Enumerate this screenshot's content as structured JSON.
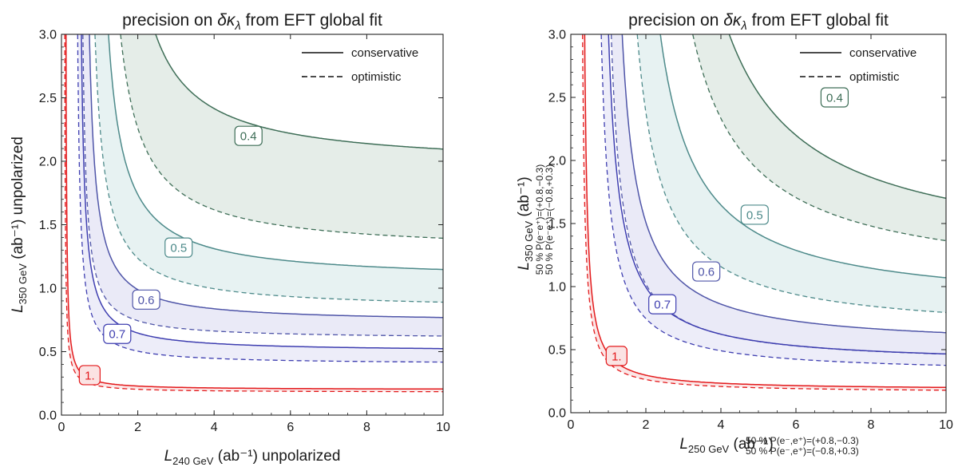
{
  "chart_data": [
    {
      "type": "contour",
      "title": "precision on δκλ from EFT global fit",
      "xlabel": {
        "sym": "L",
        "sub": "240 GeV",
        "unit": " (ab⁻¹) unpolarized"
      },
      "ylabel": {
        "sym": "L",
        "sub": "350 GeV",
        "unit": " (ab⁻¹) unpolarized"
      },
      "xlim": [
        0,
        10
      ],
      "ylim": [
        0,
        3
      ],
      "xticks": [
        "0",
        "2",
        "4",
        "6",
        "8",
        "10"
      ],
      "yticks": [
        "0.0",
        "0.5",
        "1.0",
        "1.5",
        "2.0",
        "2.5",
        "3.0"
      ],
      "legend": {
        "position": "top-right",
        "entries": [
          "conservative",
          "optimistic"
        ]
      },
      "series": [
        {
          "label": "0.4",
          "color": "#3e6e57",
          "fill": "#e2ebe6",
          "label_at": [
            4.9,
            2.2
          ],
          "conservative": {
            "x_asym": 1.25,
            "y_asym": 1.95,
            "k": 1.28
          },
          "optimistic": {
            "x_asym": 0.95,
            "y_asym": 1.28,
            "k": 1.03
          }
        },
        {
          "label": "0.5",
          "color": "#4d8a8a",
          "fill": "#e4f1f1",
          "label_at": [
            3.07,
            1.32
          ],
          "conservative": {
            "x_asym": 0.82,
            "y_asym": 1.06,
            "k": 0.8
          },
          "optimistic": {
            "x_asym": 0.62,
            "y_asym": 0.83,
            "k": 0.56
          }
        },
        {
          "label": "0.6",
          "color": "#4f55a8",
          "fill": "#e8e8f6",
          "label_at": [
            2.22,
            0.91
          ],
          "conservative": {
            "x_asym": 0.57,
            "y_asym": 0.73,
            "k": 0.37
          },
          "optimistic": {
            "x_asym": 0.47,
            "y_asym": 0.6,
            "k": 0.22
          }
        },
        {
          "label": "0.7",
          "color": "#3e3eb0",
          "fill": "#ebebf8",
          "label_at": [
            1.46,
            0.64
          ],
          "conservative": {
            "x_asym": 0.43,
            "y_asym": 0.5,
            "k": 0.23
          },
          "optimistic": {
            "x_asym": 0.36,
            "y_asym": 0.4,
            "k": 0.17
          }
        },
        {
          "label": "1.",
          "color": "#e31a1c",
          "fill": "#fbe3e3",
          "label_at": [
            0.74,
            0.315
          ],
          "conservative": {
            "x_asym": 0.1,
            "y_asym": 0.2,
            "k": 0.055
          },
          "optimistic": {
            "x_asym": 0.07,
            "y_asym": 0.18,
            "k": 0.045
          }
        }
      ]
    },
    {
      "type": "contour",
      "title": "precision on δκλ from EFT global fit",
      "xlabel": {
        "sym": "L",
        "sub": "250 GeV",
        "unit": " (ab⁻¹)"
      },
      "ylabel": {
        "sym": "L",
        "sub": "350 GeV",
        "unit": " (ab⁻¹)"
      },
      "x_polarization": [
        "50 % P(e⁻,e⁺)=(+0.8,−0.3)",
        "50 % P(e⁻,e⁺)=(−0.8,+0.3)"
      ],
      "y_polarization": [
        "50 % P(e⁻e⁺)=(+0.8,−0.3)",
        "50 % P(e⁻e⁺)=(−0.8,+0.3)"
      ],
      "xlim": [
        0,
        10
      ],
      "ylim": [
        0,
        3
      ],
      "xticks": [
        "0",
        "2",
        "4",
        "6",
        "8",
        "10"
      ],
      "yticks": [
        "0.0",
        "0.5",
        "1.0",
        "1.5",
        "2.0",
        "2.5",
        "3.0"
      ],
      "legend": {
        "position": "top-right",
        "entries": [
          "conservative",
          "optimistic"
        ]
      },
      "series": [
        {
          "label": "0.4",
          "color": "#3e6e57",
          "fill": "#e2ebe6",
          "label_at": [
            7.03,
            2.5
          ],
          "conservative": {
            "x_asym": 2.0,
            "y_asym": 1.2,
            "k": 4.0
          },
          "optimistic": {
            "x_asym": 1.75,
            "y_asym": 1.0,
            "k": 3.0
          }
        },
        {
          "label": "0.5",
          "color": "#4d8a8a",
          "fill": "#e4f1f1",
          "label_at": [
            4.9,
            1.57
          ],
          "conservative": {
            "x_asym": 1.4,
            "y_asym": 0.82,
            "k": 2.15
          },
          "optimistic": {
            "x_asym": 1.12,
            "y_asym": 0.62,
            "k": 1.55
          }
        },
        {
          "label": "0.6",
          "color": "#4f55a8",
          "fill": "#e8e8f6",
          "label_at": [
            3.61,
            1.12
          ],
          "conservative": {
            "x_asym": 0.95,
            "y_asym": 0.52,
            "k": 1.04
          },
          "optimistic": {
            "x_asym": 0.78,
            "y_asym": 0.38,
            "k": 0.78
          }
        },
        {
          "label": "0.7",
          "color": "#3e3eb0",
          "fill": "#ebebf8",
          "label_at": [
            2.44,
            0.86
          ],
          "conservative": {
            "x_asym": 0.7,
            "y_asym": 0.38,
            "k": 0.8
          },
          "optimistic": {
            "x_asym": 0.58,
            "y_asym": 0.31,
            "k": 0.62
          }
        },
        {
          "label": "1.",
          "color": "#e31a1c",
          "fill": "#fbe3e3",
          "label_at": [
            1.22,
            0.45
          ],
          "conservative": {
            "x_asym": 0.3,
            "y_asym": 0.18,
            "k": 0.2
          },
          "optimistic": {
            "x_asym": 0.25,
            "y_asym": 0.16,
            "k": 0.18
          }
        }
      ]
    }
  ]
}
